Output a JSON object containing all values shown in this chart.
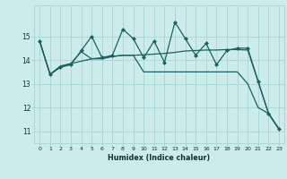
{
  "xlabel": "Humidex (Indice chaleur)",
  "background_color": "#ccecea",
  "grid_color": "#aad8d4",
  "line_color": "#1a6060",
  "x": [
    0,
    1,
    2,
    3,
    4,
    5,
    6,
    7,
    8,
    9,
    10,
    11,
    12,
    13,
    14,
    15,
    16,
    17,
    18,
    19,
    20,
    21,
    22,
    23
  ],
  "series1": [
    14.8,
    13.4,
    13.7,
    13.8,
    14.4,
    15.0,
    14.1,
    14.2,
    15.3,
    14.9,
    14.1,
    14.8,
    13.9,
    15.6,
    14.9,
    14.2,
    14.7,
    13.8,
    14.4,
    14.5,
    14.5,
    13.1,
    11.75,
    11.1
  ],
  "series2": [
    14.8,
    13.4,
    13.7,
    13.85,
    14.35,
    14.05,
    14.05,
    14.15,
    14.2,
    14.2,
    13.5,
    13.5,
    13.5,
    13.5,
    13.5,
    13.5,
    13.5,
    13.5,
    13.5,
    13.5,
    13.0,
    12.0,
    11.75,
    11.1
  ],
  "series3": [
    14.8,
    13.4,
    13.75,
    13.85,
    13.95,
    14.05,
    14.1,
    14.15,
    14.2,
    14.2,
    14.22,
    14.25,
    14.28,
    14.32,
    14.38,
    14.4,
    14.42,
    14.42,
    14.44,
    14.44,
    14.42,
    13.1,
    11.75,
    11.1
  ],
  "ylim": [
    10.5,
    16.3
  ],
  "yticks": [
    11,
    12,
    13,
    14,
    15
  ],
  "xticks": [
    0,
    1,
    2,
    3,
    4,
    5,
    6,
    7,
    8,
    9,
    10,
    11,
    12,
    13,
    14,
    15,
    16,
    17,
    18,
    19,
    20,
    21,
    22,
    23
  ]
}
